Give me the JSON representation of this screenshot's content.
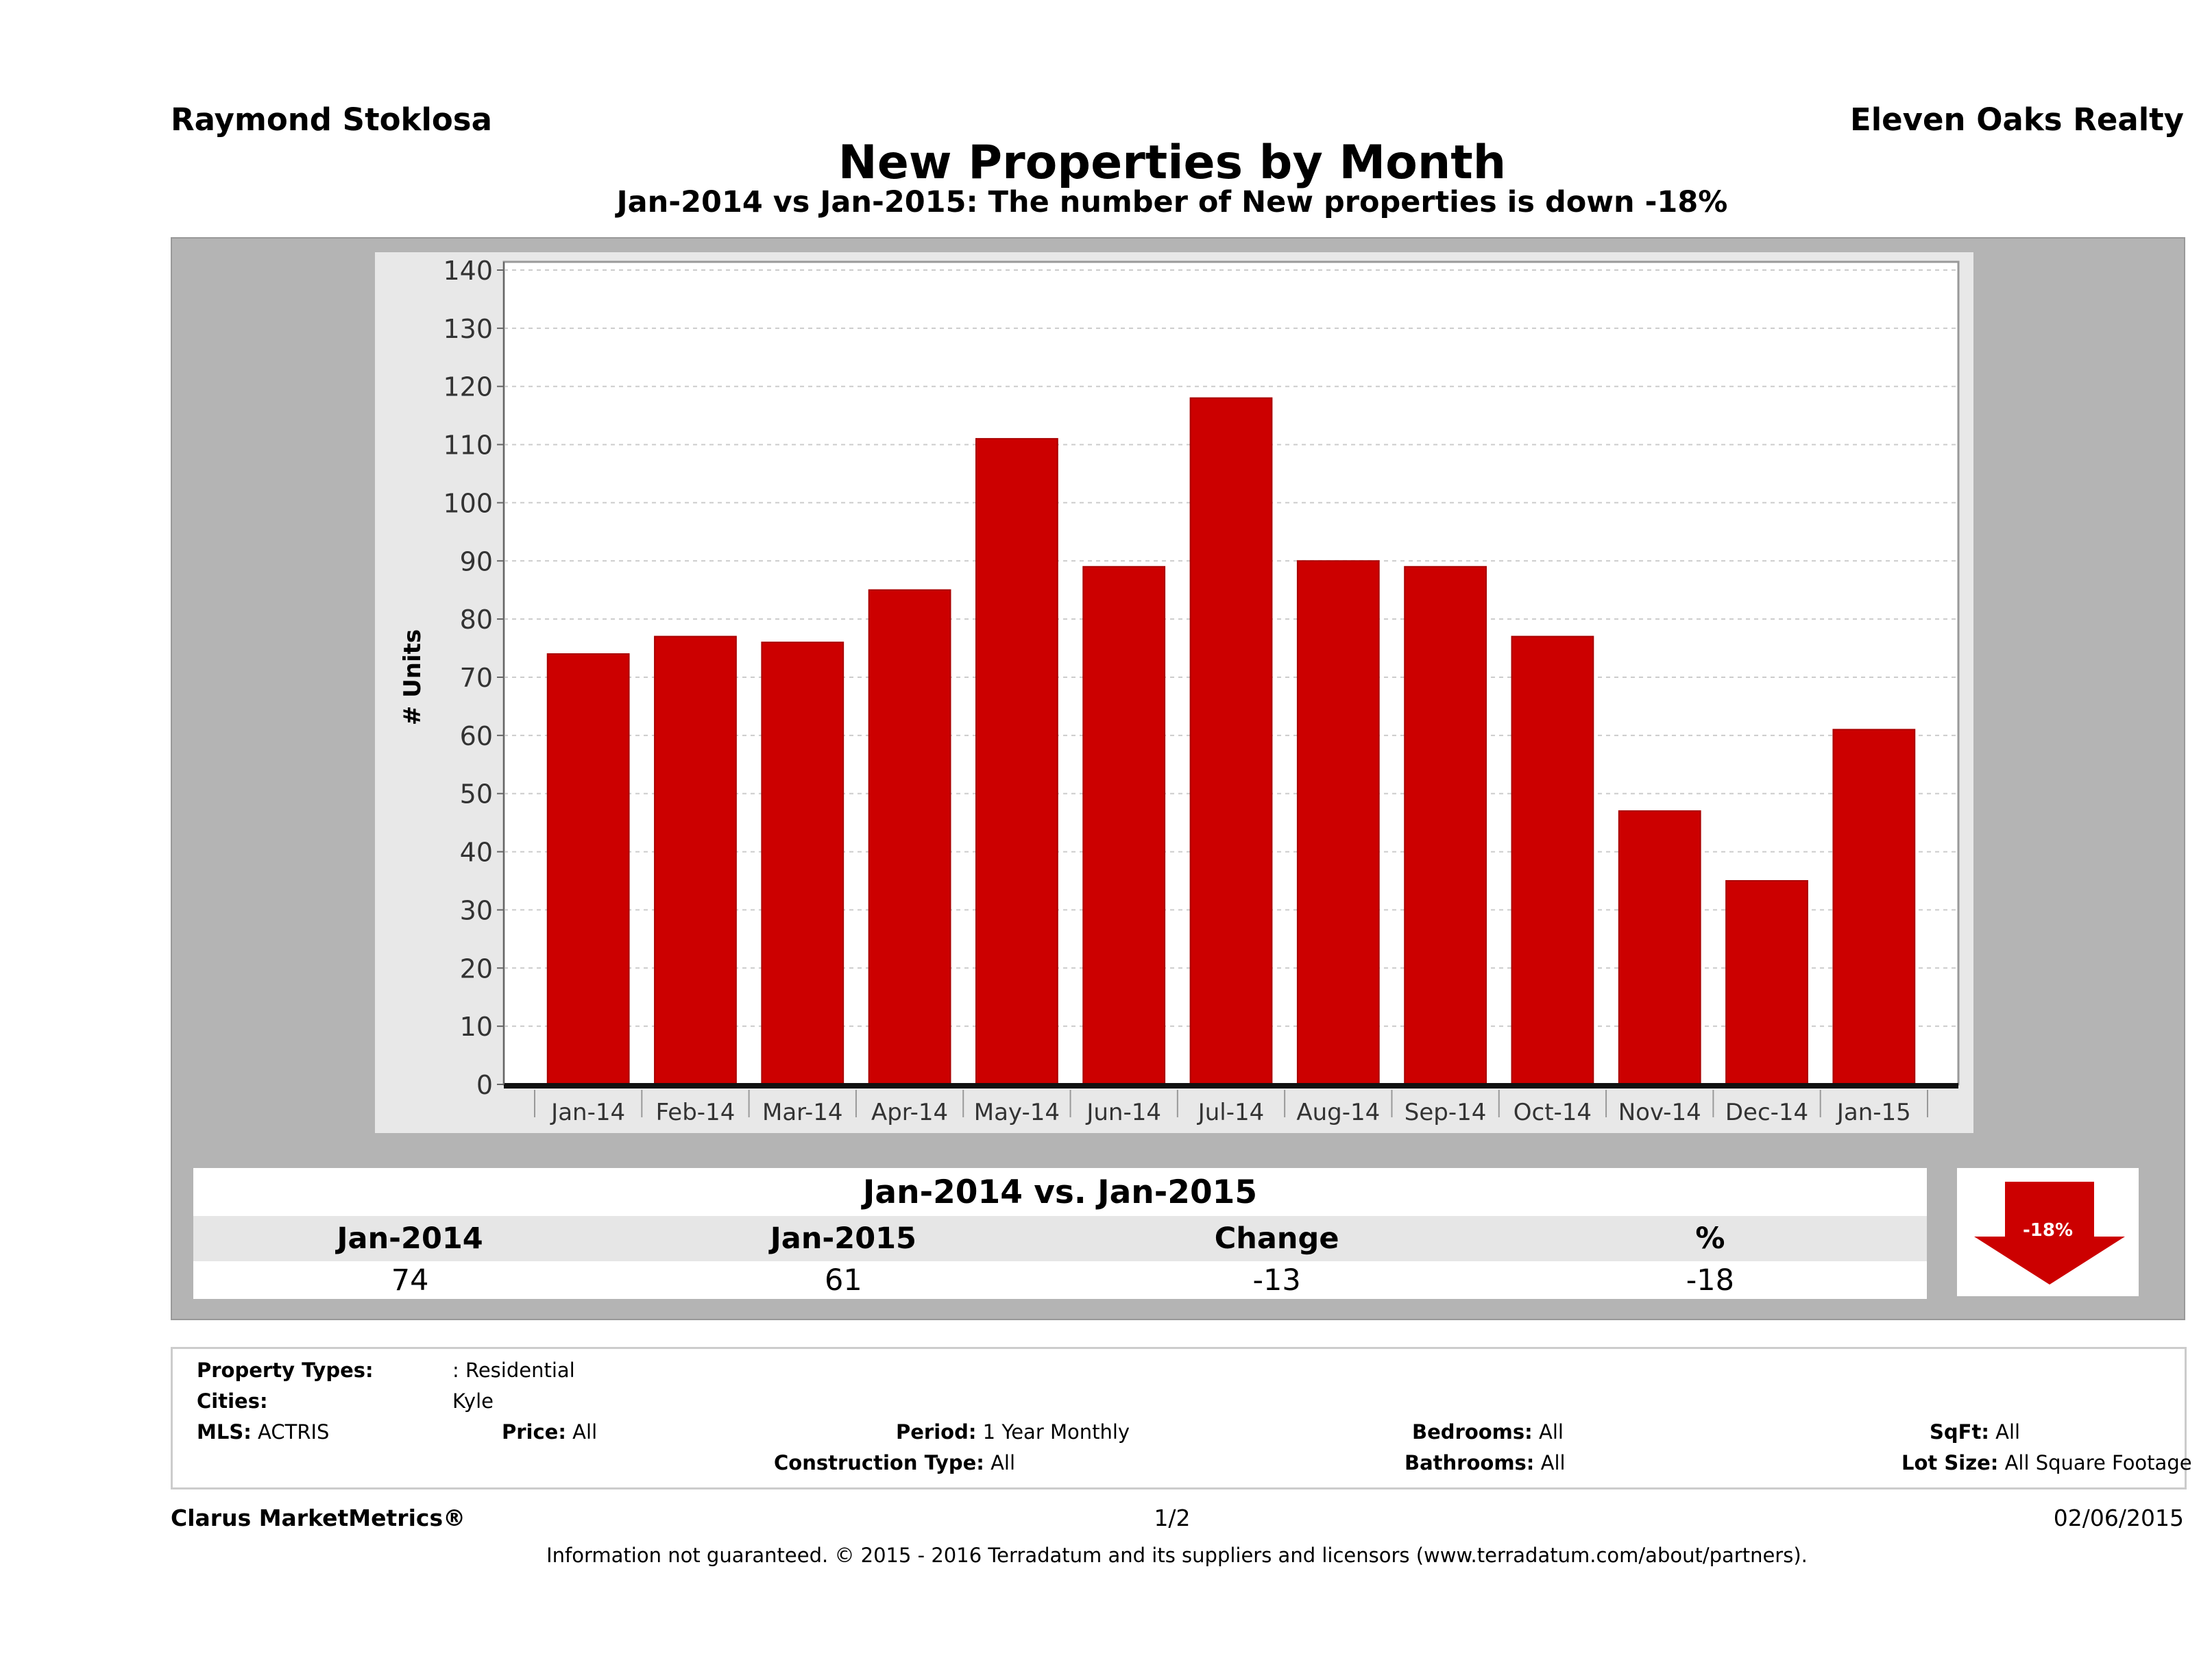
{
  "header": {
    "agent": "Raymond Stoklosa",
    "brokerage": "Eleven Oaks Realty"
  },
  "title": "New Properties by Month",
  "subtitle": "Jan-2014 vs Jan-2015: The number of New  properties is down -18%",
  "chart_data": {
    "type": "bar",
    "categories": [
      "Jan-14",
      "Feb-14",
      "Mar-14",
      "Apr-14",
      "May-14",
      "Jun-14",
      "Jul-14",
      "Aug-14",
      "Sep-14",
      "Oct-14",
      "Nov-14",
      "Dec-14",
      "Jan-15"
    ],
    "values": [
      74,
      77,
      76,
      85,
      111,
      89,
      118,
      90,
      89,
      77,
      47,
      35,
      61
    ],
    "ylabel": "# Units",
    "ylim": [
      0,
      140
    ],
    "yticks": [
      0,
      10,
      20,
      30,
      40,
      50,
      60,
      70,
      80,
      90,
      100,
      110,
      120,
      130,
      140
    ],
    "grid": true,
    "bar_color": "#cc0000"
  },
  "summary": {
    "heading": "Jan-2014 vs. Jan-2015",
    "columns": [
      "Jan-2014",
      "Jan-2015",
      "Change",
      "%"
    ],
    "values": [
      "74",
      "61",
      "-13",
      "-18"
    ],
    "badge": "-18%",
    "badge_color": "#cc0000"
  },
  "info": {
    "property_types_label": "Property Types:",
    "property_types": ": Residential",
    "cities_label": "Cities:",
    "cities": "Kyle",
    "mls_label": "MLS:",
    "mls": "ACTRIS",
    "price_label": "Price:",
    "price": "All",
    "period_label": "Period:",
    "period": "1 Year Monthly",
    "bedrooms_label": "Bedrooms:",
    "bedrooms": "All",
    "sqft_label": "SqFt:",
    "sqft": "All",
    "construction_label": "Construction Type:",
    "construction": "All",
    "bathrooms_label": "Bathrooms:",
    "bathrooms": "All",
    "lotsize_label": "Lot Size:",
    "lotsize": "All Square Footage"
  },
  "footer": {
    "brand": "Clarus MarketMetrics®",
    "page": "1/2",
    "date": "02/06/2015",
    "disclaimer": "Information not guaranteed. © 2015 - 2016 Terradatum and its suppliers and licensors (www.terradatum.com/about/partners)."
  }
}
